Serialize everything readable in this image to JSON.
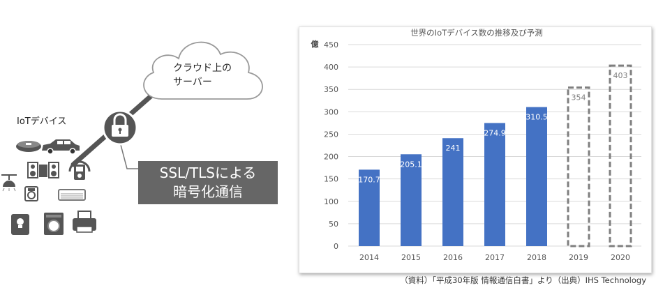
{
  "diagram": {
    "cloud_line1": "クラウド上の",
    "cloud_line2": "サーバー",
    "iot_label": "IoTデバイス",
    "ssl_line1": "SSL/TLSによる",
    "ssl_line2": "暗号化通信",
    "icons": [
      "lock-icon",
      "cloud-icon",
      "robot-vacuum-icon",
      "car-icon",
      "stereo-icon",
      "music-player-icon",
      "ceiling-light-icon",
      "scale-icon",
      "air-conditioner-icon",
      "bathroom-scale-icon",
      "washing-machine-icon",
      "printer-icon"
    ]
  },
  "chart_data": {
    "type": "bar",
    "title": "世界のIoTデバイス数の推移及び予測",
    "ylabel": "億",
    "xlabel": "",
    "ylim": [
      0,
      450
    ],
    "yticks": [
      0,
      50,
      100,
      150,
      200,
      250,
      300,
      350,
      400,
      450
    ],
    "categories": [
      "2014",
      "2015",
      "2016",
      "2017",
      "2018",
      "2019",
      "2020"
    ],
    "values": [
      170.7,
      205.1,
      241,
      274.9,
      310.5,
      354,
      403
    ],
    "value_labels": [
      "170.7",
      "205.1",
      "241",
      "274.9",
      "310.5",
      "354",
      "403"
    ],
    "forecast": [
      false,
      false,
      false,
      false,
      false,
      true,
      true
    ],
    "colors": {
      "actual": "#4472c4",
      "forecast_border": "#7f7f7f",
      "grid": "#d9d9d9"
    },
    "grid": true,
    "legend": "none"
  },
  "source_note": "（資料）「平成30年版 情報通信白書」より（出典）IHS Technology"
}
